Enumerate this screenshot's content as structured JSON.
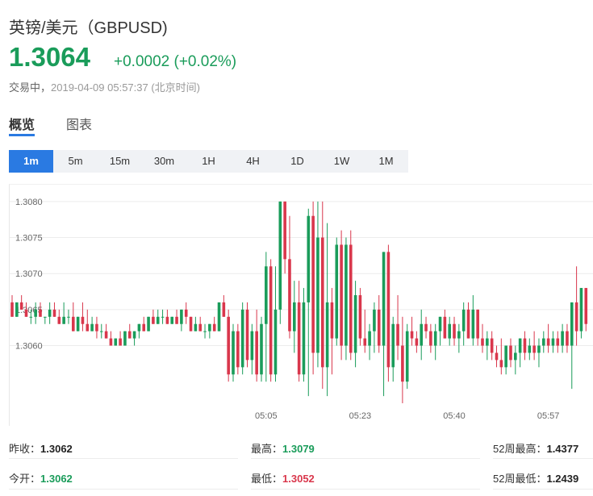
{
  "header": {
    "title": "英镑/美元（GBPUSD)",
    "price": "1.3064",
    "change": "+0.0002 (+0.02%)",
    "status": "交易中，",
    "timestamp": "2019-04-09 05:57:37 (北京时间)"
  },
  "tabs": [
    {
      "label": "概览",
      "active": true
    },
    {
      "label": "图表",
      "active": false
    }
  ],
  "timeframes": [
    {
      "label": "1m",
      "active": true
    },
    {
      "label": "5m",
      "active": false
    },
    {
      "label": "15m",
      "active": false
    },
    {
      "label": "30m",
      "active": false
    },
    {
      "label": "1H",
      "active": false
    },
    {
      "label": "4H",
      "active": false
    },
    {
      "label": "1D",
      "active": false
    },
    {
      "label": "1W",
      "active": false
    },
    {
      "label": "1M",
      "active": false
    }
  ],
  "stats": {
    "prev_close_label": "昨收：",
    "prev_close": "1.3062",
    "open_label": "今开：",
    "open": "1.3062",
    "high_label": "最高：",
    "high": "1.3079",
    "low_label": "最低：",
    "low": "1.3052",
    "w52_high_label": "52周最高：",
    "w52_high": "1.4377",
    "w52_low_label": "52周最低：",
    "w52_low": "1.2439"
  },
  "colors": {
    "up": "#1a9c5a",
    "down": "#d9374c",
    "accent": "#2a7ae2"
  },
  "chart_data": {
    "type": "candlestick",
    "ylim": [
      1.3052,
      1.3082
    ],
    "yticks": [
      "1.3080",
      "1.3075",
      "1.3070",
      "1.3065",
      "1.3060"
    ],
    "xticks": [
      {
        "index": 54,
        "label": "05:05"
      },
      {
        "index": 74,
        "label": "05:23"
      },
      {
        "index": 94,
        "label": "05:40"
      },
      {
        "index": 114,
        "label": "05:57"
      }
    ],
    "grid": true,
    "candles": [
      [
        1.3066,
        1.3067,
        1.3064,
        1.3064
      ],
      [
        1.3064,
        1.3066,
        1.3064,
        1.3066
      ],
      [
        1.3066,
        1.3067,
        1.3065,
        1.3065
      ],
      [
        1.3065,
        1.3066,
        1.3064,
        1.3064
      ],
      [
        1.3064,
        1.3065,
        1.3063,
        1.3064
      ],
      [
        1.3064,
        1.3066,
        1.3063,
        1.3065
      ],
      [
        1.3065,
        1.3066,
        1.3064,
        1.3064
      ],
      [
        1.3064,
        1.3064,
        1.3063,
        1.3064
      ],
      [
        1.3064,
        1.3066,
        1.3063,
        1.3065
      ],
      [
        1.3065,
        1.3066,
        1.3064,
        1.3064
      ],
      [
        1.3064,
        1.3065,
        1.3063,
        1.3063
      ],
      [
        1.3063,
        1.3066,
        1.3063,
        1.3064
      ],
      [
        1.3064,
        1.3065,
        1.3063,
        1.3064
      ],
      [
        1.3064,
        1.3066,
        1.3062,
        1.3062
      ],
      [
        1.3062,
        1.3064,
        1.3062,
        1.3064
      ],
      [
        1.3064,
        1.3066,
        1.3062,
        1.3063
      ],
      [
        1.3063,
        1.3065,
        1.3062,
        1.3062
      ],
      [
        1.3062,
        1.3064,
        1.3062,
        1.3063
      ],
      [
        1.3063,
        1.3064,
        1.3061,
        1.3062
      ],
      [
        1.3062,
        1.3063,
        1.3061,
        1.3062
      ],
      [
        1.3062,
        1.3063,
        1.3061,
        1.3061
      ],
      [
        1.3061,
        1.3062,
        1.306,
        1.306
      ],
      [
        1.306,
        1.3061,
        1.306,
        1.3061
      ],
      [
        1.3061,
        1.3062,
        1.306,
        1.306
      ],
      [
        1.306,
        1.3062,
        1.306,
        1.3062
      ],
      [
        1.3062,
        1.3063,
        1.3061,
        1.3061
      ],
      [
        1.3061,
        1.3062,
        1.306,
        1.3062
      ],
      [
        1.3062,
        1.3063,
        1.3061,
        1.3063
      ],
      [
        1.3063,
        1.3064,
        1.3062,
        1.3062
      ],
      [
        1.3062,
        1.3064,
        1.3062,
        1.3064
      ],
      [
        1.3064,
        1.3065,
        1.3063,
        1.3063
      ],
      [
        1.3063,
        1.3065,
        1.3063,
        1.3064
      ],
      [
        1.3064,
        1.3065,
        1.3063,
        1.3064
      ],
      [
        1.3064,
        1.3065,
        1.3063,
        1.3063
      ],
      [
        1.3063,
        1.3064,
        1.3063,
        1.3064
      ],
      [
        1.3064,
        1.3065,
        1.3063,
        1.3063
      ],
      [
        1.3063,
        1.3065,
        1.3062,
        1.3065
      ],
      [
        1.3065,
        1.3066,
        1.3063,
        1.3064
      ],
      [
        1.3064,
        1.3064,
        1.3062,
        1.3062
      ],
      [
        1.3062,
        1.3064,
        1.3062,
        1.3063
      ],
      [
        1.3063,
        1.3064,
        1.3062,
        1.3062
      ],
      [
        1.3062,
        1.3063,
        1.3061,
        1.3062
      ],
      [
        1.3062,
        1.3063,
        1.3061,
        1.3063
      ],
      [
        1.3063,
        1.3064,
        1.3062,
        1.3062
      ],
      [
        1.3062,
        1.3066,
        1.3062,
        1.3066
      ],
      [
        1.3066,
        1.3067,
        1.3064,
        1.3064
      ],
      [
        1.3064,
        1.3065,
        1.3055,
        1.3056
      ],
      [
        1.3056,
        1.3063,
        1.3055,
        1.3062
      ],
      [
        1.3062,
        1.3063,
        1.3056,
        1.3057
      ],
      [
        1.3057,
        1.3066,
        1.3056,
        1.3065
      ],
      [
        1.3065,
        1.3066,
        1.3057,
        1.3058
      ],
      [
        1.3058,
        1.3063,
        1.3056,
        1.3062
      ],
      [
        1.3062,
        1.3065,
        1.3055,
        1.3056
      ],
      [
        1.3056,
        1.3064,
        1.3055,
        1.3063
      ],
      [
        1.3063,
        1.3073,
        1.3055,
        1.3071
      ],
      [
        1.3071,
        1.3072,
        1.3055,
        1.3056
      ],
      [
        1.3056,
        1.3071,
        1.3055,
        1.3065
      ],
      [
        1.3065,
        1.308,
        1.3063,
        1.308
      ],
      [
        1.308,
        1.308,
        1.307,
        1.3072
      ],
      [
        1.3072,
        1.3078,
        1.3061,
        1.3062
      ],
      [
        1.3062,
        1.3069,
        1.3059,
        1.3066
      ],
      [
        1.3066,
        1.3069,
        1.3055,
        1.3056
      ],
      [
        1.3056,
        1.3068,
        1.3055,
        1.3066
      ],
      [
        1.3066,
        1.3079,
        1.3053,
        1.3078
      ],
      [
        1.3078,
        1.308,
        1.3056,
        1.3059
      ],
      [
        1.3059,
        1.308,
        1.3057,
        1.3075
      ],
      [
        1.3075,
        1.308,
        1.3054,
        1.3057
      ],
      [
        1.3057,
        1.3077,
        1.3053,
        1.3066
      ],
      [
        1.3066,
        1.3068,
        1.3056,
        1.3061
      ],
      [
        1.3061,
        1.3075,
        1.306,
        1.3074
      ],
      [
        1.3074,
        1.3076,
        1.3058,
        1.306
      ],
      [
        1.306,
        1.3075,
        1.3058,
        1.3074
      ],
      [
        1.3074,
        1.3076,
        1.3058,
        1.3059
      ],
      [
        1.3059,
        1.3069,
        1.3057,
        1.3067
      ],
      [
        1.3067,
        1.3068,
        1.306,
        1.3061
      ],
      [
        1.3061,
        1.3065,
        1.3059,
        1.306
      ],
      [
        1.306,
        1.3063,
        1.3058,
        1.3062
      ],
      [
        1.3062,
        1.3066,
        1.3059,
        1.3065
      ],
      [
        1.3065,
        1.3067,
        1.3059,
        1.306
      ],
      [
        1.306,
        1.3073,
        1.3053,
        1.3073
      ],
      [
        1.3073,
        1.3074,
        1.3055,
        1.3057
      ],
      [
        1.3057,
        1.3064,
        1.3055,
        1.3063
      ],
      [
        1.3063,
        1.3067,
        1.3058,
        1.306
      ],
      [
        1.306,
        1.3064,
        1.3052,
        1.3055
      ],
      [
        1.3055,
        1.3063,
        1.3054,
        1.3062
      ],
      [
        1.3062,
        1.3064,
        1.306,
        1.3061
      ],
      [
        1.3061,
        1.3062,
        1.3059,
        1.306
      ],
      [
        1.306,
        1.3065,
        1.3058,
        1.3063
      ],
      [
        1.3063,
        1.3064,
        1.3061,
        1.3062
      ],
      [
        1.3062,
        1.3063,
        1.3059,
        1.306
      ],
      [
        1.306,
        1.3063,
        1.3058,
        1.3062
      ],
      [
        1.3062,
        1.3064,
        1.306,
        1.3064
      ],
      [
        1.3064,
        1.3065,
        1.3061,
        1.3061
      ],
      [
        1.3061,
        1.3064,
        1.306,
        1.3063
      ],
      [
        1.3063,
        1.3064,
        1.306,
        1.3061
      ],
      [
        1.3061,
        1.3063,
        1.3059,
        1.3062
      ],
      [
        1.3062,
        1.3066,
        1.306,
        1.3065
      ],
      [
        1.3065,
        1.3066,
        1.3061,
        1.3061
      ],
      [
        1.3061,
        1.3067,
        1.306,
        1.3065
      ],
      [
        1.3065,
        1.3065,
        1.306,
        1.3061
      ],
      [
        1.3061,
        1.3063,
        1.3059,
        1.306
      ],
      [
        1.306,
        1.3062,
        1.3058,
        1.3061
      ],
      [
        1.3061,
        1.3062,
        1.3058,
        1.3059
      ],
      [
        1.3059,
        1.306,
        1.3057,
        1.3058
      ],
      [
        1.3058,
        1.3061,
        1.3056,
        1.3057
      ],
      [
        1.3057,
        1.306,
        1.3056,
        1.306
      ],
      [
        1.306,
        1.3061,
        1.3057,
        1.3058
      ],
      [
        1.3058,
        1.306,
        1.3056,
        1.3059
      ],
      [
        1.3059,
        1.3061,
        1.3057,
        1.3061
      ],
      [
        1.3061,
        1.3062,
        1.3058,
        1.3059
      ],
      [
        1.3059,
        1.3061,
        1.3058,
        1.306
      ],
      [
        1.306,
        1.3062,
        1.3058,
        1.3059
      ],
      [
        1.3059,
        1.3061,
        1.3057,
        1.306
      ],
      [
        1.306,
        1.3062,
        1.3059,
        1.3061
      ],
      [
        1.3061,
        1.3063,
        1.3059,
        1.306
      ],
      [
        1.306,
        1.3062,
        1.3059,
        1.3061
      ],
      [
        1.3061,
        1.3062,
        1.3059,
        1.306
      ],
      [
        1.306,
        1.3063,
        1.3059,
        1.3062
      ],
      [
        1.3062,
        1.3063,
        1.3059,
        1.306
      ],
      [
        1.306,
        1.3066,
        1.3054,
        1.3066
      ],
      [
        1.3066,
        1.3071,
        1.306,
        1.3062
      ],
      [
        1.3062,
        1.3068,
        1.3061,
        1.3068
      ],
      [
        1.3068,
        1.3068,
        1.3062,
        1.3063
      ]
    ]
  }
}
